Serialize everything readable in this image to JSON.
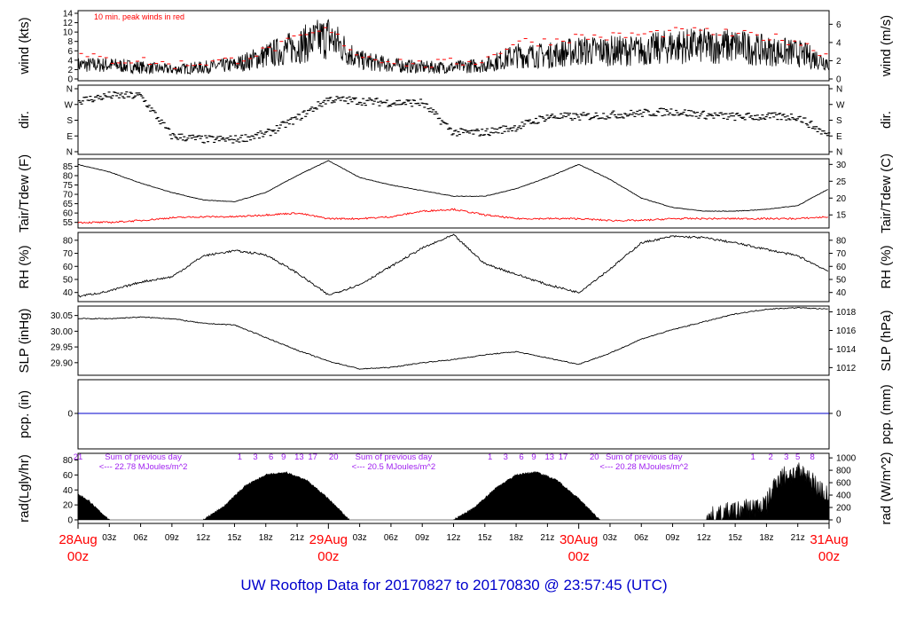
{
  "title": "UW Rooftop Data for 20170827  to  20170830 @ 23:57:45  (UTC)",
  "colors": {
    "frame": "#000000",
    "dewpoint": "#ff0000",
    "peak": "#ff0000",
    "precip": "#0000cc",
    "annot": "#a020f0",
    "title": "#0000cc",
    "day": "#ff0000"
  },
  "x_axis": {
    "hour_ticks": [
      "03z",
      "06z",
      "09z",
      "12z",
      "15z",
      "18z",
      "21z",
      "03z",
      "06z",
      "09z",
      "12z",
      "15z",
      "18z",
      "21z",
      "03z",
      "06z",
      "09z",
      "12z",
      "15z",
      "18z",
      "21z"
    ],
    "days": [
      {
        "top": "28Aug",
        "bottom": "00z"
      },
      {
        "top": "29Aug",
        "bottom": "00z"
      },
      {
        "top": "30Aug",
        "bottom": "00z"
      },
      {
        "top": "31Aug",
        "bottom": "00z"
      }
    ]
  },
  "chart_data": [
    {
      "type": "line",
      "panel": "wind",
      "ylabel_left": "wind (kts)",
      "ylabel_right": "wind (m/s)",
      "yticks_left": [
        "0",
        "2",
        "4",
        "6",
        "8",
        "10",
        "12",
        "14"
      ],
      "yticks_right": [
        "0",
        "2",
        "4",
        "6"
      ],
      "ylim": [
        0,
        14
      ],
      "annotation": "10 min. peak winds in red",
      "x_hours": [
        0,
        3,
        6,
        9,
        12,
        15,
        18,
        21,
        24,
        27,
        30,
        33,
        36,
        39,
        42,
        45,
        48,
        51,
        54,
        57,
        60,
        63,
        66,
        69,
        72
      ],
      "series": [
        {
          "values": [
            3,
            3,
            2.5,
            2,
            2.5,
            3,
            5,
            7,
            9,
            4,
            3,
            2.5,
            2.5,
            3,
            5,
            5,
            6,
            6,
            6,
            7,
            7,
            7,
            6,
            5.5,
            3.5
          ]
        },
        {
          "values": [
            5,
            4,
            4,
            3,
            3.5,
            4,
            6,
            8.5,
            10.5,
            5,
            4,
            3,
            3.5,
            4,
            8,
            8,
            9,
            9,
            9.5,
            10,
            10,
            9.5,
            9,
            8,
            5
          ]
        }
      ]
    },
    {
      "type": "scatter",
      "panel": "dir",
      "ylabel_left": "dir.",
      "ylabel_right": "dir.",
      "yticks_left": [
        "N",
        "E",
        "S",
        "W",
        "N"
      ],
      "yticks_right": [
        "N",
        "E",
        "S",
        "W",
        "N"
      ],
      "x_hours": [
        0,
        3,
        6,
        9,
        12,
        15,
        18,
        21,
        24,
        27,
        30,
        33,
        36,
        39,
        42,
        45,
        48,
        51,
        54,
        57,
        60,
        63,
        66,
        69,
        72
      ],
      "values_deg": [
        290,
        320,
        320,
        90,
        70,
        70,
        100,
        190,
        300,
        290,
        280,
        280,
        110,
        110,
        140,
        200,
        200,
        210,
        220,
        230,
        210,
        200,
        200,
        200,
        90
      ]
    },
    {
      "type": "line",
      "panel": "temp",
      "ylabel_left": "Tair/Tdew (F)",
      "ylabel_right": "Tair/Tdew (C)",
      "yticks_left": [
        "55",
        "60",
        "65",
        "70",
        "75",
        "80",
        "85"
      ],
      "yticks_right": [
        "15",
        "20",
        "25",
        "30"
      ],
      "ylim": [
        52,
        89
      ],
      "x_hours": [
        0,
        3,
        6,
        9,
        12,
        15,
        18,
        21,
        24,
        27,
        30,
        33,
        36,
        39,
        42,
        45,
        48,
        51,
        54,
        57,
        60,
        63,
        66,
        69,
        72
      ],
      "series": [
        {
          "values": [
            86,
            82,
            76,
            71,
            67,
            66,
            71,
            80,
            88,
            79,
            75,
            72,
            69,
            69,
            73,
            79,
            86,
            78,
            68,
            63,
            61,
            61,
            62,
            64,
            73
          ]
        },
        {
          "values": [
            55,
            55,
            56,
            57.5,
            58,
            58,
            59,
            60,
            57,
            57,
            58,
            61,
            62,
            59,
            57,
            57,
            57,
            56,
            56,
            57,
            57,
            57,
            57,
            57,
            58
          ]
        }
      ]
    },
    {
      "type": "line",
      "panel": "rh",
      "ylabel_left": "RH (%)",
      "ylabel_right": "RH (%)",
      "yticks_left": [
        "40",
        "50",
        "60",
        "70",
        "80"
      ],
      "yticks_right": [
        "40",
        "50",
        "60",
        "70",
        "80"
      ],
      "ylim": [
        33,
        86
      ],
      "x_hours": [
        0,
        3,
        6,
        9,
        12,
        15,
        18,
        21,
        24,
        27,
        30,
        33,
        36,
        39,
        42,
        45,
        48,
        51,
        54,
        57,
        60,
        63,
        66,
        69,
        72
      ],
      "values": [
        37,
        41,
        48,
        52,
        68,
        72,
        69,
        55,
        38,
        46,
        60,
        74,
        84,
        62,
        54,
        46,
        40,
        58,
        78,
        83,
        82,
        78,
        73,
        68,
        56
      ]
    },
    {
      "type": "line",
      "panel": "slp",
      "ylabel_left": "SLP (inHg)",
      "ylabel_right": "SLP (hPa)",
      "yticks_left": [
        "29.90",
        "29.95",
        "30.00",
        "30.05"
      ],
      "yticks_right": [
        "1012",
        "1014",
        "1016",
        "1018"
      ],
      "ylim": [
        29.86,
        30.08
      ],
      "x_hours": [
        0,
        3,
        6,
        9,
        12,
        15,
        18,
        21,
        24,
        27,
        30,
        33,
        36,
        39,
        42,
        45,
        48,
        51,
        54,
        57,
        60,
        63,
        66,
        69,
        72
      ],
      "values": [
        30.04,
        30.04,
        30.045,
        30.04,
        30.025,
        30.02,
        29.98,
        29.94,
        29.905,
        29.88,
        29.885,
        29.9,
        29.91,
        29.925,
        29.935,
        29.915,
        29.895,
        29.93,
        29.975,
        30.005,
        30.03,
        30.055,
        30.07,
        30.075,
        30.07
      ]
    },
    {
      "type": "line",
      "panel": "pcp",
      "ylabel_left": "pcp. (in)",
      "ylabel_right": "pcp. (mm)",
      "yticks_left": [
        "0"
      ],
      "yticks_right": [
        "0"
      ],
      "x_hours": [
        0,
        72
      ],
      "values": [
        0,
        0
      ]
    },
    {
      "type": "area",
      "panel": "rad",
      "ylabel_left": "rad(Lgly/hr)",
      "ylabel_right": "rad (W/m^2)",
      "yticks_left": [
        "0",
        "20",
        "40",
        "60",
        "80"
      ],
      "yticks_right": [
        "0",
        "200",
        "400",
        "600",
        "800",
        "1000"
      ],
      "ylim": [
        0,
        83
      ],
      "x_hours": [
        0,
        1,
        2,
        3,
        12,
        14,
        16,
        18,
        20,
        22,
        24,
        26,
        36,
        38,
        40,
        42,
        44,
        46,
        48,
        50,
        60,
        62,
        64,
        66,
        67,
        68,
        69,
        70,
        71,
        72
      ],
      "values": [
        34,
        26,
        12,
        0,
        0,
        18,
        45,
        60,
        63,
        52,
        28,
        0,
        0,
        16,
        42,
        60,
        64,
        52,
        28,
        0,
        0,
        8,
        14,
        20,
        55,
        60,
        62,
        58,
        42,
        30
      ],
      "sum_label": "Sum of previous day",
      "daily_sums": [
        "<--- 22.78 MJoules/m^2",
        "<--- 20.5 MJoules/m^2",
        "<--- 20.28 MJoules/m^2"
      ],
      "hour_labels": [
        {
          "x_hours": 0,
          "label": "21"
        },
        {
          "x_hours": 15.5,
          "label": "1"
        },
        {
          "x_hours": 17,
          "label": "3"
        },
        {
          "x_hours": 18.5,
          "label": "6"
        },
        {
          "x_hours": 19.7,
          "label": "9"
        },
        {
          "x_hours": 21.2,
          "label": "13"
        },
        {
          "x_hours": 22.5,
          "label": "17"
        },
        {
          "x_hours": 24.5,
          "label": "20"
        },
        {
          "x_hours": 39.5,
          "label": "1"
        },
        {
          "x_hours": 41,
          "label": "3"
        },
        {
          "x_hours": 42.5,
          "label": "6"
        },
        {
          "x_hours": 43.7,
          "label": "9"
        },
        {
          "x_hours": 45.2,
          "label": "13"
        },
        {
          "x_hours": 46.5,
          "label": "17"
        },
        {
          "x_hours": 49.5,
          "label": "20"
        },
        {
          "x_hours": 64.7,
          "label": "1"
        },
        {
          "x_hours": 66.4,
          "label": "2"
        },
        {
          "x_hours": 67.9,
          "label": "3"
        },
        {
          "x_hours": 69,
          "label": "5"
        },
        {
          "x_hours": 70.4,
          "label": "8"
        }
      ]
    }
  ]
}
